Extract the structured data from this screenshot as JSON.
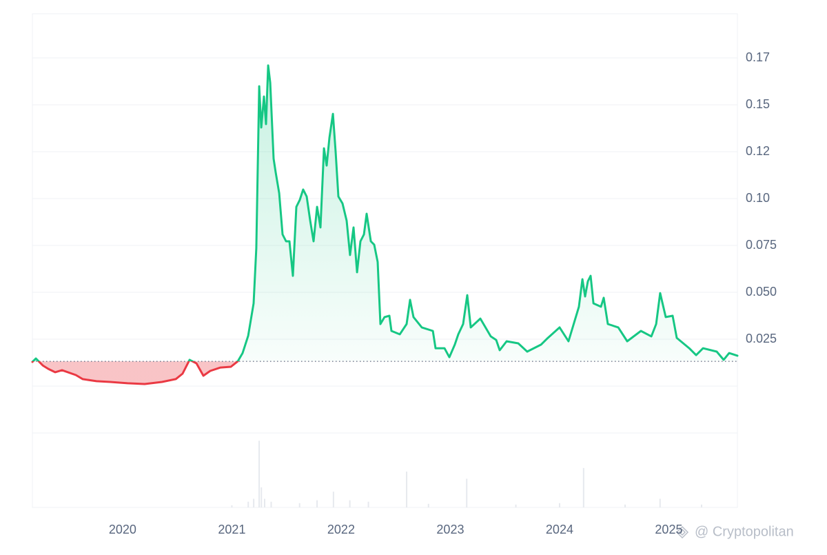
{
  "chart_data": {
    "type": "line",
    "x": [
      2019.174,
      2019.206,
      2019.269,
      2019.319,
      2019.382,
      2019.445,
      2019.572,
      2019.635,
      2019.761,
      2019.887,
      2020.045,
      2020.202,
      2020.36,
      2020.486,
      2020.549,
      2020.613,
      2020.676,
      2020.739,
      2020.802,
      2020.896,
      2020.991,
      2021.054,
      2021.098,
      2021.149,
      2021.199,
      2021.224,
      2021.25,
      2021.269,
      2021.294,
      2021.313,
      2021.332,
      2021.351,
      2021.382,
      2021.401,
      2021.433,
      2021.464,
      2021.496,
      2021.527,
      2021.559,
      2021.59,
      2021.622,
      2021.653,
      2021.685,
      2021.717,
      2021.748,
      2021.78,
      2021.811,
      2021.843,
      2021.868,
      2021.893,
      2021.925,
      2021.95,
      2021.975,
      2022.013,
      2022.051,
      2022.082,
      2022.114,
      2022.146,
      2022.177,
      2022.209,
      2022.234,
      2022.272,
      2022.303,
      2022.335,
      2022.36,
      2022.398,
      2022.442,
      2022.461,
      2022.537,
      2022.6,
      2022.631,
      2022.663,
      2022.739,
      2022.84,
      2022.865,
      2022.947,
      2022.991,
      2023.041,
      2023.073,
      2023.117,
      2023.155,
      2023.187,
      2023.275,
      2023.37,
      2023.42,
      2023.452,
      2023.515,
      2023.622,
      2023.704,
      2023.83,
      2023.893,
      2024.0,
      2024.082,
      2024.177,
      2024.209,
      2024.234,
      2024.259,
      2024.284,
      2024.31,
      2024.379,
      2024.404,
      2024.442,
      2024.537,
      2024.619,
      2024.745,
      2024.84,
      2024.884,
      2024.921,
      2024.972,
      2025.035,
      2025.073,
      2025.187,
      2025.25,
      2025.313,
      2025.439,
      2025.502,
      2025.552,
      2025.628
    ],
    "values": [
      0.0129,
      0.0147,
      0.011,
      0.0092,
      0.0074,
      0.0085,
      0.0059,
      0.0037,
      0.0026,
      0.0022,
      0.0015,
      0.0011,
      0.0022,
      0.0037,
      0.0066,
      0.014,
      0.0121,
      0.0055,
      0.0081,
      0.0099,
      0.0103,
      0.0132,
      0.0176,
      0.0268,
      0.0441,
      0.0735,
      0.1599,
      0.1379,
      0.1544,
      0.1397,
      0.171,
      0.1618,
      0.1213,
      0.114,
      0.1029,
      0.0809,
      0.0772,
      0.0772,
      0.0588,
      0.0956,
      0.0993,
      0.1048,
      0.1011,
      0.0882,
      0.0772,
      0.0956,
      0.0846,
      0.1268,
      0.1176,
      0.1324,
      0.1452,
      0.125,
      0.1011,
      0.0974,
      0.0882,
      0.0699,
      0.0846,
      0.0607,
      0.0772,
      0.0809,
      0.0919,
      0.0772,
      0.0754,
      0.0662,
      0.0331,
      0.0368,
      0.0375,
      0.0294,
      0.0276,
      0.0331,
      0.046,
      0.0368,
      0.0313,
      0.0294,
      0.0202,
      0.0202,
      0.0154,
      0.0221,
      0.0276,
      0.0331,
      0.0485,
      0.0313,
      0.036,
      0.0265,
      0.0246,
      0.0191,
      0.0239,
      0.0228,
      0.0184,
      0.0221,
      0.0257,
      0.0313,
      0.0239,
      0.0423,
      0.057,
      0.0478,
      0.0559,
      0.0588,
      0.0441,
      0.0423,
      0.0471,
      0.0331,
      0.0313,
      0.0239,
      0.0294,
      0.0265,
      0.0331,
      0.0496,
      0.0368,
      0.0375,
      0.0257,
      0.0202,
      0.0165,
      0.0202,
      0.0184,
      0.014,
      0.0176,
      0.0162
    ],
    "baseline": 0.0132,
    "color_up": "#16c784",
    "color_down": "#ea3943",
    "xlim": [
      2019.174,
      2025.628
    ],
    "xticks": [
      2020,
      2021,
      2022,
      2023,
      2024,
      2025
    ],
    "ylim": [
      0,
      0.2
    ],
    "yticks": [
      0.025,
      {
        "value": 0.05,
        "label": "0.050"
      },
      0.075,
      {
        "value": 0.1,
        "label": "0.10"
      },
      {
        "value": 0.125,
        "label": "0.12"
      },
      0.15,
      {
        "value": 0.175,
        "label": "0.17"
      }
    ],
    "grid": true,
    "volume": {
      "x": [
        2021.0,
        2021.15,
        2021.2,
        2021.25,
        2021.27,
        2021.3,
        2021.36,
        2021.62,
        2021.78,
        2021.93,
        2022.08,
        2022.25,
        2022.6,
        2022.8,
        2023.15,
        2023.6,
        2024.0,
        2024.22,
        2024.6,
        2024.92,
        2025.3
      ],
      "values": [
        0.03,
        0.08,
        0.12,
        0.93,
        0.28,
        0.12,
        0.08,
        0.06,
        0.1,
        0.22,
        0.1,
        0.08,
        0.5,
        0.05,
        0.4,
        0.04,
        0.06,
        0.55,
        0.04,
        0.12,
        0.04
      ],
      "ylim": [
        0,
        1
      ],
      "color": "#e6e9ee"
    },
    "watermark": "@ Cryptopolitan"
  }
}
